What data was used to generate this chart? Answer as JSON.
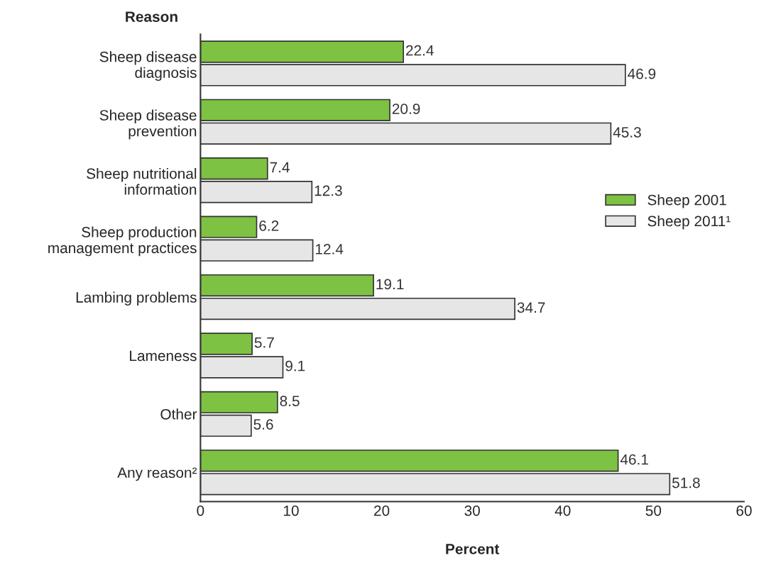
{
  "chart_data": {
    "type": "bar",
    "orientation": "horizontal",
    "xlabel": "Percent",
    "ylabel": "Reason",
    "categories": [
      "Sheep disease\ndiagnosis",
      "Sheep disease\nprevention",
      "Sheep nutritional\ninformation",
      "Sheep production\nmanagement practices",
      "Lambing problems",
      "Lameness",
      "Other",
      "Any reason²"
    ],
    "series": [
      {
        "name": "Sheep 2001",
        "color": "#7dc242",
        "values": [
          22.4,
          20.9,
          7.4,
          6.2,
          19.1,
          5.7,
          8.5,
          46.1
        ]
      },
      {
        "name": "Sheep 2011¹",
        "color": "#e6e6e6",
        "values": [
          46.9,
          45.3,
          12.3,
          12.4,
          34.7,
          9.1,
          5.6,
          51.8
        ]
      }
    ],
    "xlim": [
      0,
      60
    ],
    "xticks": [
      0,
      10,
      20,
      30,
      40,
      50,
      60
    ],
    "data_labels": true,
    "grid": false,
    "legend": "right"
  }
}
